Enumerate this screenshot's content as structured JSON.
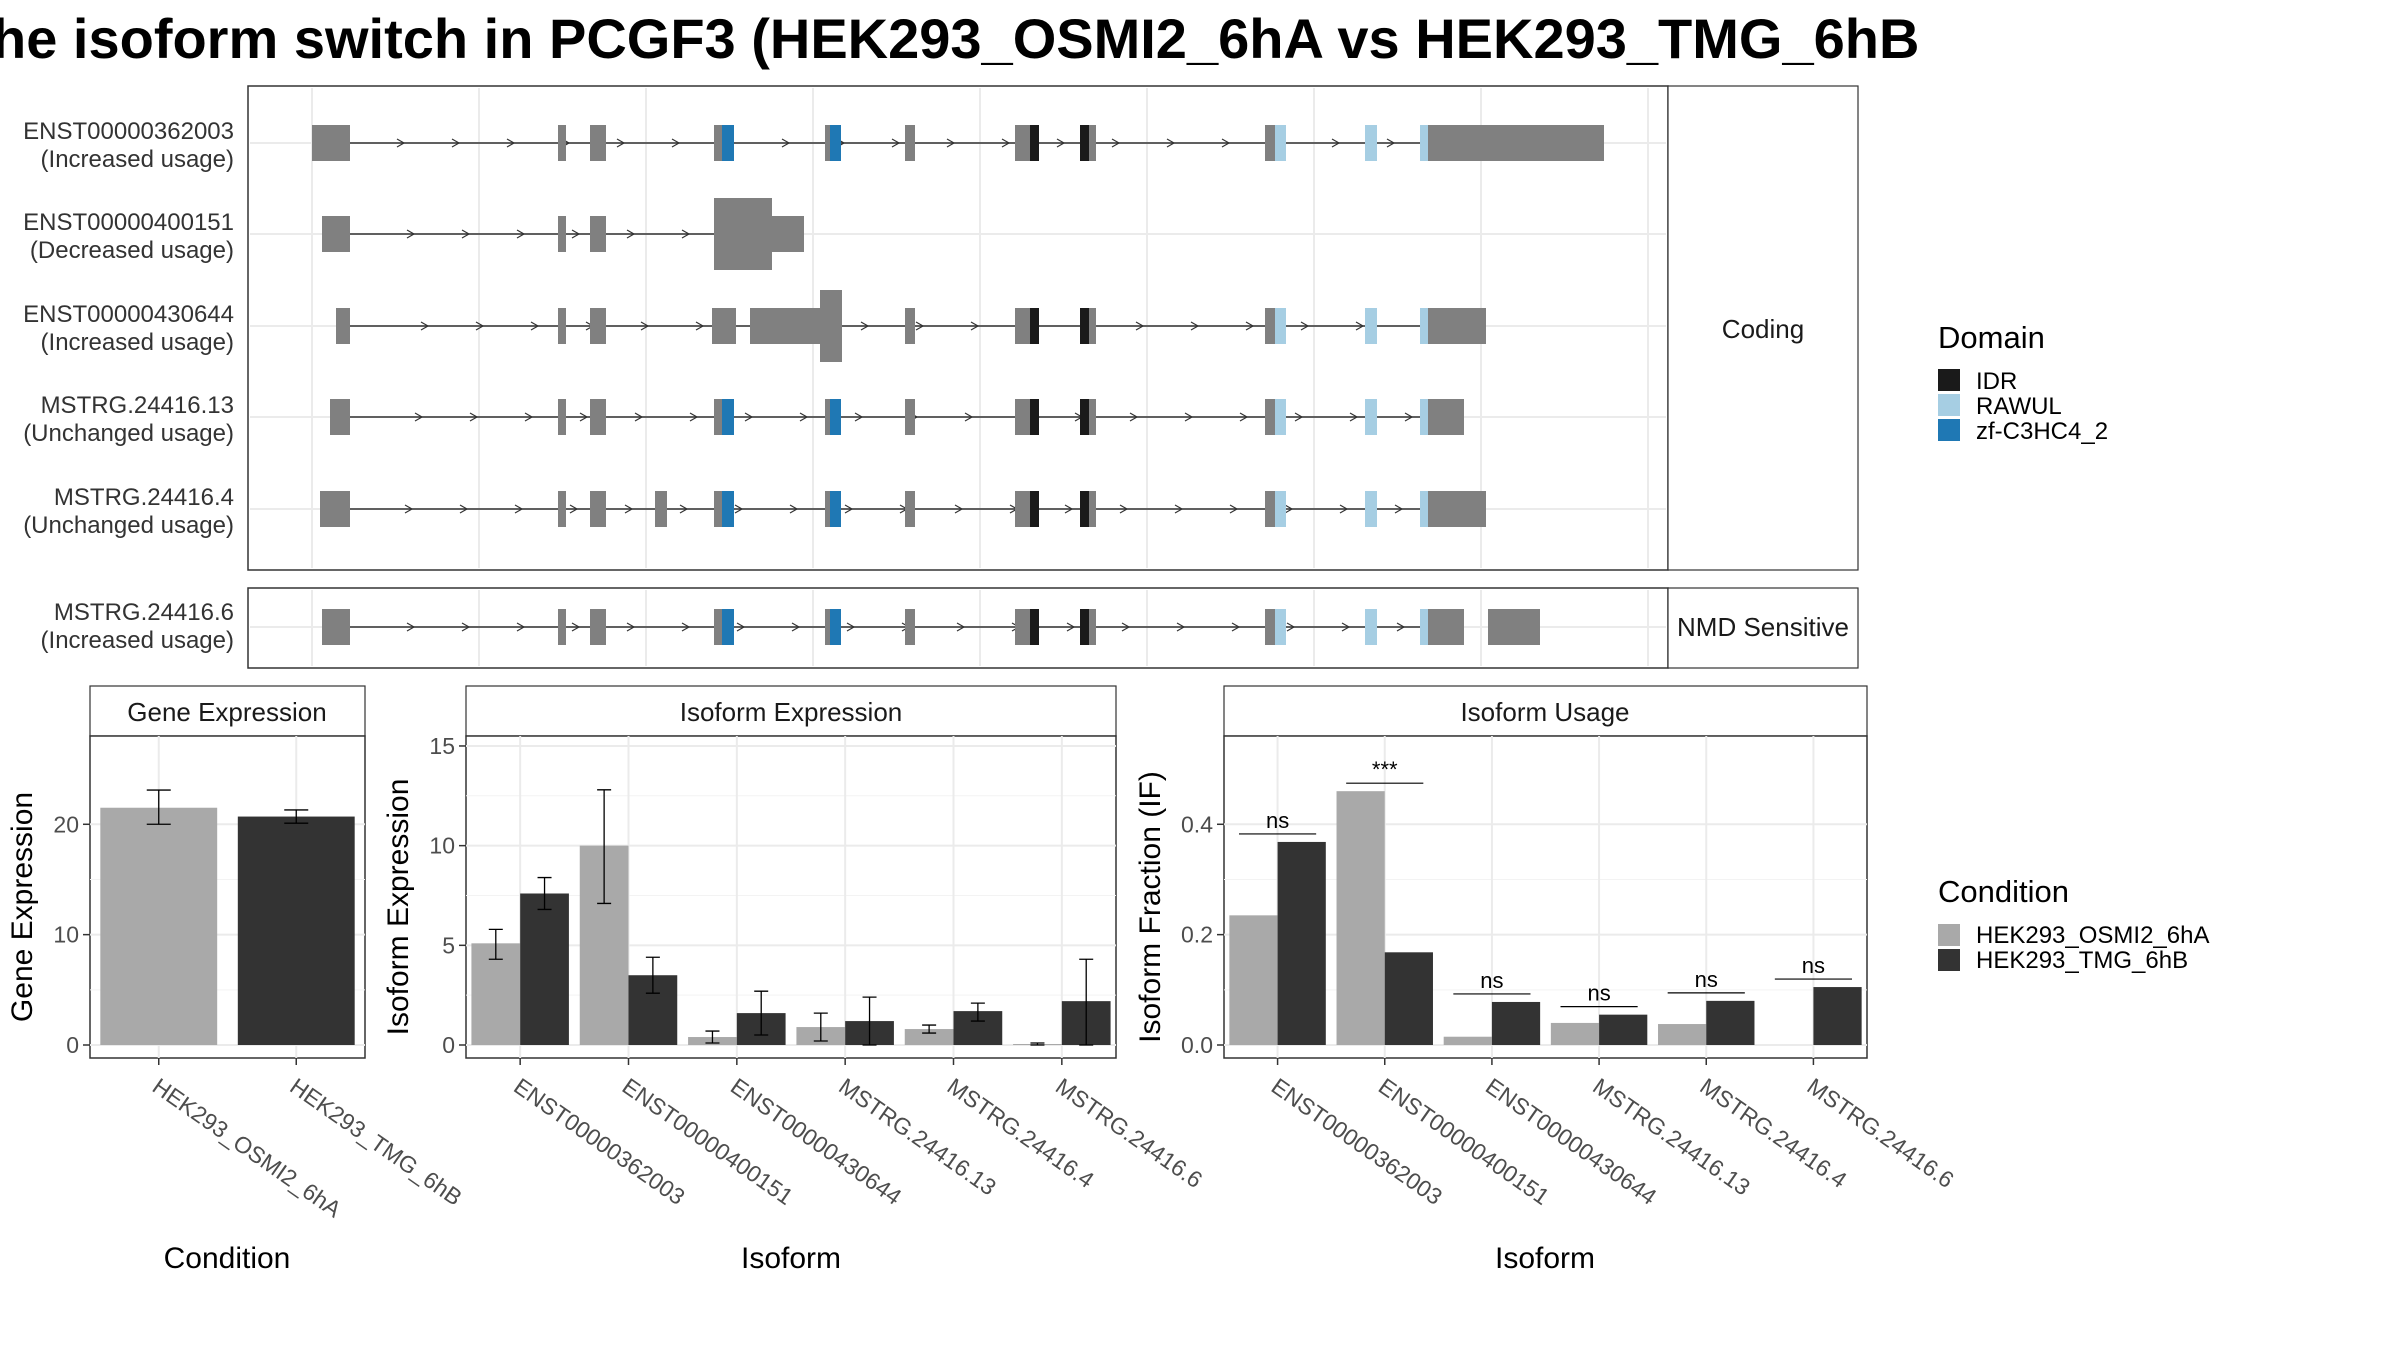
{
  "title": "he isoform switch in PCGF3 (HEK293_OSMI2_6hA vs HEK293_TMG_6hB",
  "colors": {
    "exon": "#808080",
    "IDR": "#1a1a1a",
    "RAWUL": "#a6cee3",
    "zf-C3HC4_2": "#1f78b4",
    "HEK293_OSMI2_6hA": "#a9a9a9",
    "HEK293_TMG_6hB": "#333333",
    "grid": "#ebebeb",
    "strip_bg": "#ffffff"
  },
  "structure": {
    "coding_label": "Coding",
    "nmd_label": "NMD Sensitive",
    "transcripts": [
      {
        "id": "ENST00000362003",
        "usage": "(Increased usage)",
        "group": "coding"
      },
      {
        "id": "ENST00000400151",
        "usage": "(Decreased usage)",
        "group": "coding"
      },
      {
        "id": "ENST00000430644",
        "usage": "(Increased usage)",
        "group": "coding"
      },
      {
        "id": "MSTRG.24416.13",
        "usage": "(Unchanged usage)",
        "group": "coding"
      },
      {
        "id": "MSTRG.24416.4",
        "usage": "(Unchanged usage)",
        "group": "coding"
      },
      {
        "id": "MSTRG.24416.6",
        "usage": "(Increased usage)",
        "group": "nmd"
      }
    ]
  },
  "legend_domain": {
    "title": "Domain",
    "items": [
      "IDR",
      "RAWUL",
      "zf-C3HC4_2"
    ]
  },
  "legend_condition": {
    "title": "Condition",
    "items": [
      "HEK293_OSMI2_6hA",
      "HEK293_TMG_6hB"
    ]
  },
  "chart_data": [
    {
      "type": "bar",
      "title": "Gene Expression",
      "xlabel": "Condition",
      "ylabel": "Gene Expression",
      "categories": [
        "HEK293_OSMI2_6hA",
        "HEK293_TMG_6hB"
      ],
      "values": [
        21.5,
        20.7
      ],
      "errors": [
        [
          20.0,
          23.1
        ],
        [
          20.1,
          21.3
        ]
      ],
      "ylim": [
        0,
        28
      ],
      "yticks": [
        0,
        10,
        20
      ]
    },
    {
      "type": "bar",
      "title": "Isoform Expression",
      "xlabel": "Isoform",
      "ylabel": "Isoform Expression",
      "categories": [
        "ENST00000362003",
        "ENST00000400151",
        "ENST00000430644",
        "MSTRG.24416.13",
        "MSTRG.24416.4",
        "MSTRG.24416.6"
      ],
      "series": [
        {
          "name": "HEK293_OSMI2_6hA",
          "values": [
            5.1,
            10.0,
            0.4,
            0.9,
            0.8,
            0.05
          ],
          "errors": [
            [
              4.3,
              5.8
            ],
            [
              7.1,
              12.8
            ],
            [
              0.1,
              0.7
            ],
            [
              0.2,
              1.6
            ],
            [
              0.6,
              1.0
            ],
            [
              0.0,
              0.1
            ]
          ]
        },
        {
          "name": "HEK293_TMG_6hB",
          "values": [
            7.6,
            3.5,
            1.6,
            1.2,
            1.7,
            2.2
          ],
          "errors": [
            [
              6.8,
              8.4
            ],
            [
              2.6,
              4.4
            ],
            [
              0.5,
              2.7
            ],
            [
              0.0,
              2.4
            ],
            [
              1.2,
              2.1
            ],
            [
              0.0,
              4.3
            ]
          ]
        }
      ],
      "ylim": [
        0,
        15.5
      ],
      "yticks": [
        0,
        5,
        10,
        15
      ]
    },
    {
      "type": "bar",
      "title": "Isoform Usage",
      "xlabel": "Isoform",
      "ylabel": "Isoform Fraction (IF)",
      "categories": [
        "ENST00000362003",
        "ENST00000400151",
        "ENST00000430644",
        "MSTRG.24416.13",
        "MSTRG.24416.4",
        "MSTRG.24416.6"
      ],
      "series": [
        {
          "name": "HEK293_OSMI2_6hA",
          "values": [
            0.235,
            0.46,
            0.015,
            0.04,
            0.038,
            0.0
          ]
        },
        {
          "name": "HEK293_TMG_6hB",
          "values": [
            0.368,
            0.168,
            0.078,
            0.055,
            0.08,
            0.105
          ]
        }
      ],
      "significance": [
        "ns",
        "***",
        "ns",
        "ns",
        "ns",
        "ns"
      ],
      "ylim": [
        0,
        0.56
      ],
      "yticks": [
        0.0,
        0.2,
        0.4
      ]
    }
  ]
}
